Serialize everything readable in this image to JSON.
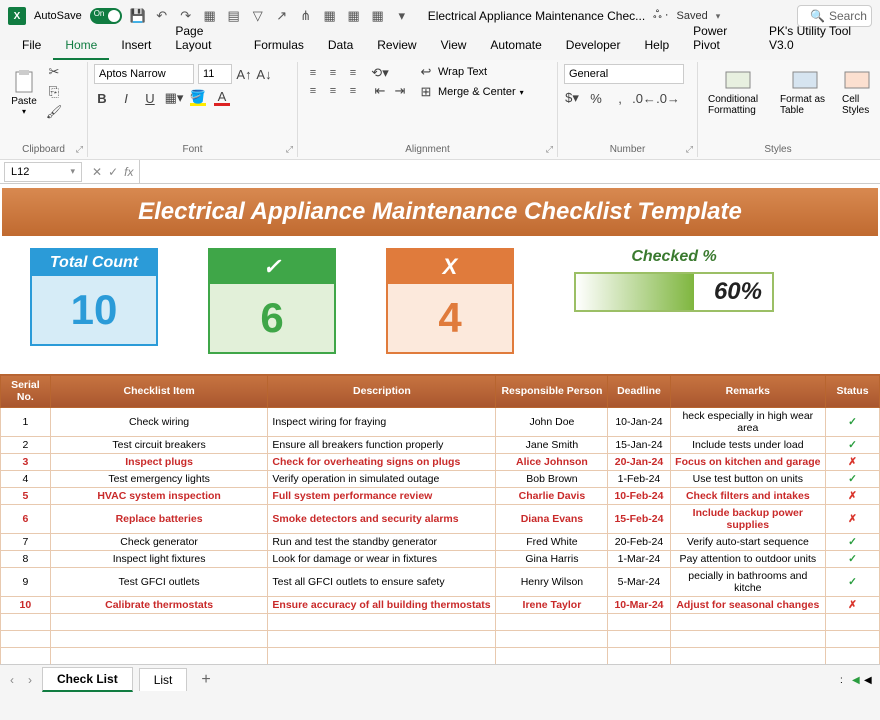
{
  "titlebar": {
    "autosave_label": "AutoSave",
    "autosave_state": "On",
    "doc_title": "Electrical Appliance Maintenance Chec...",
    "saved_status": "Saved",
    "search_placeholder": "Search"
  },
  "tabs": {
    "file": "File",
    "home": "Home",
    "insert": "Insert",
    "page_layout": "Page Layout",
    "formulas": "Formulas",
    "data": "Data",
    "review": "Review",
    "view": "View",
    "automate": "Automate",
    "developer": "Developer",
    "help": "Help",
    "power_pivot": "Power Pivot",
    "pk": "PK's Utility Tool V3.0"
  },
  "ribbon": {
    "paste": "Paste",
    "clipboard_label": "Clipboard",
    "font_name": "Aptos Narrow",
    "font_size": "11",
    "font_label": "Font",
    "wrap_text": "Wrap Text",
    "merge_center": "Merge & Center",
    "alignment_label": "Alignment",
    "number_format": "General",
    "number_label": "Number",
    "cond_fmt": "Conditional Formatting",
    "fmt_table": "Format as Table",
    "cell_styles": "Cell Styles",
    "styles_label": "Styles"
  },
  "formula_bar": {
    "name_box": "L12"
  },
  "banner": "Electrical Appliance Maintenance Checklist Template",
  "cards": {
    "total": {
      "label": "Total Count",
      "value": "10"
    },
    "done": {
      "label": "✓",
      "value": "6"
    },
    "pending": {
      "label": "X",
      "value": "4"
    },
    "progress": {
      "label": "Checked %",
      "value": "60%",
      "percent": 60
    }
  },
  "table": {
    "headers": [
      "Serial No.",
      "Checklist Item",
      "Description",
      "Responsible Person",
      "Deadline",
      "Remarks",
      "Status"
    ],
    "col_widths": [
      "48px",
      "210px",
      "220px",
      "108px",
      "60px",
      "150px",
      "52px"
    ],
    "rows": [
      {
        "n": "1",
        "item": "Check wiring",
        "desc": "Inspect wiring for fraying",
        "person": "John Doe",
        "deadline": "10-Jan-24",
        "remarks": "heck especially in high wear area",
        "status": "ok",
        "red": false
      },
      {
        "n": "2",
        "item": "Test circuit breakers",
        "desc": "Ensure all breakers function properly",
        "person": "Jane Smith",
        "deadline": "15-Jan-24",
        "remarks": "Include tests under load",
        "status": "ok",
        "red": false
      },
      {
        "n": "3",
        "item": "Inspect plugs",
        "desc": "Check for overheating signs on plugs",
        "person": "Alice Johnson",
        "deadline": "20-Jan-24",
        "remarks": "Focus on kitchen and garage",
        "status": "no",
        "red": true
      },
      {
        "n": "4",
        "item": "Test emergency lights",
        "desc": "Verify operation in simulated outage",
        "person": "Bob Brown",
        "deadline": "1-Feb-24",
        "remarks": "Use test button on units",
        "status": "ok",
        "red": false
      },
      {
        "n": "5",
        "item": "HVAC system inspection",
        "desc": "Full system performance review",
        "person": "Charlie Davis",
        "deadline": "10-Feb-24",
        "remarks": "Check filters and intakes",
        "status": "no",
        "red": true
      },
      {
        "n": "6",
        "item": "Replace batteries",
        "desc": "Smoke detectors and security alarms",
        "person": "Diana Evans",
        "deadline": "15-Feb-24",
        "remarks": "Include backup power supplies",
        "status": "no",
        "red": true
      },
      {
        "n": "7",
        "item": "Check generator",
        "desc": "Run and test the standby generator",
        "person": "Fred White",
        "deadline": "20-Feb-24",
        "remarks": "Verify auto-start sequence",
        "status": "ok",
        "red": false
      },
      {
        "n": "8",
        "item": "Inspect light fixtures",
        "desc": "Look for damage or wear in fixtures",
        "person": "Gina Harris",
        "deadline": "1-Mar-24",
        "remarks": "Pay attention to outdoor units",
        "status": "ok",
        "red": false
      },
      {
        "n": "9",
        "item": "Test GFCI outlets",
        "desc": "Test all GFCI outlets to ensure safety",
        "person": "Henry Wilson",
        "deadline": "5-Mar-24",
        "remarks": "pecially in bathrooms and kitche",
        "status": "ok",
        "red": false
      },
      {
        "n": "10",
        "item": "Calibrate thermostats",
        "desc": "Ensure accuracy of all building thermostats",
        "person": "Irene Taylor",
        "deadline": "10-Mar-24",
        "remarks": "Adjust for seasonal changes",
        "status": "no",
        "red": true
      }
    ],
    "empty_rows": 4
  },
  "sheets": {
    "active": "Check List",
    "other": "List"
  },
  "colors": {
    "banner_top": "#d88950",
    "banner_bottom": "#c06a30",
    "total": "#2b9bd8",
    "done": "#3fa648",
    "pending": "#e07b3c",
    "progress": "#7fb63f",
    "header_top": "#c77440",
    "header_bottom": "#a8552e",
    "row_border": "#e8c9af",
    "red_text": "#c92a2a"
  }
}
